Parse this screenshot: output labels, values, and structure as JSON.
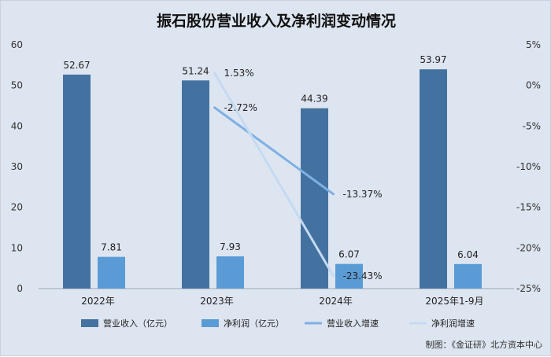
{
  "chart_data": {
    "type": "bar",
    "title": "振石股份营业收入及净利润变动情况",
    "categories": [
      "2022年",
      "2023年",
      "2024年",
      "2025年1-9月"
    ],
    "y_left": {
      "ticks": [
        "0",
        "10",
        "20",
        "30",
        "40",
        "50",
        "60"
      ],
      "min": 0,
      "max": 60
    },
    "y_right": {
      "ticks": [
        "5%",
        "0%",
        "-5%",
        "-10%",
        "-15%",
        "-20%",
        "-25%"
      ],
      "min": -25,
      "max": 5
    },
    "series": [
      {
        "name": "营业收入（亿元）",
        "kind": "bar",
        "axis": "left",
        "color": "#4472a0",
        "values": [
          52.67,
          51.24,
          44.39,
          53.97
        ],
        "labels": [
          "52.67",
          "51.24",
          "44.39",
          "53.97"
        ]
      },
      {
        "name": "净利润（亿元）",
        "kind": "bar",
        "axis": "left",
        "color": "#5b9bd5",
        "values": [
          7.81,
          7.93,
          6.07,
          6.04
        ],
        "labels": [
          "7.81",
          "7.93",
          "6.07",
          "6.04"
        ]
      },
      {
        "name": "营业收入增速",
        "kind": "line",
        "axis": "right",
        "color": "#7fb0e4",
        "points": [
          {
            "category": "2023年",
            "value": -2.72
          },
          {
            "category": "2024年",
            "value": -13.37
          }
        ],
        "labels": [
          "-2.72%",
          "-13.37%"
        ]
      },
      {
        "name": "净利润增速",
        "kind": "line",
        "axis": "right",
        "color": "#c5daf2",
        "points": [
          {
            "category": "2023年",
            "value": 1.53
          },
          {
            "category": "2024年",
            "value": -23.43
          }
        ],
        "labels": [
          "1.53%",
          "-23.43%"
        ]
      }
    ],
    "legend_position": "bottom",
    "grid": false
  },
  "source_note": "制图：《金证研》北方资本中心"
}
